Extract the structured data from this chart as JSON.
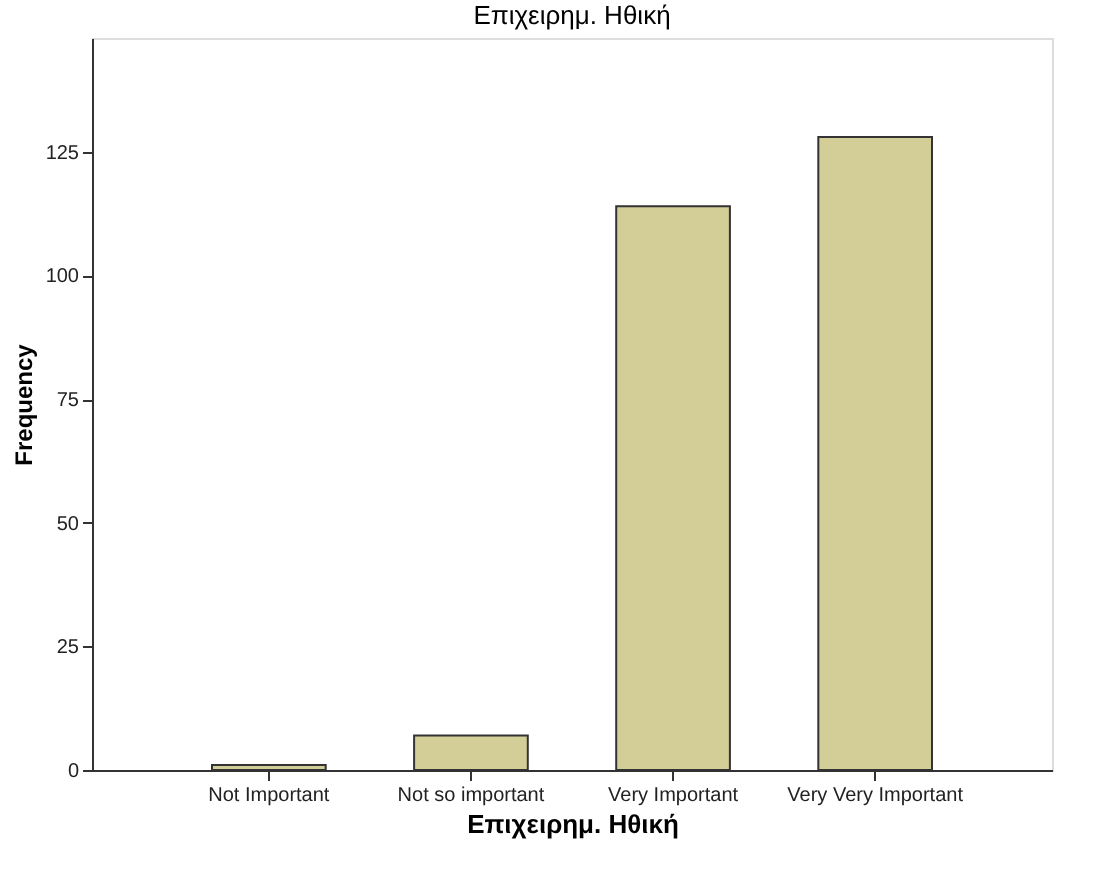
{
  "chart_data": {
    "type": "bar",
    "title": "Επιχειρημ. Ηθική",
    "xlabel": "Επιχειρημ. Ηθική",
    "ylabel": "Frequency",
    "categories": [
      "Not Important",
      "Not so important",
      "Very Important",
      "Very Very Important"
    ],
    "values": [
      1,
      7,
      114,
      128
    ],
    "color": "#d3cd98",
    "ylim": [
      0,
      148
    ],
    "yticks": [
      0,
      25,
      50,
      75,
      100,
      125
    ],
    "grid": false
  }
}
